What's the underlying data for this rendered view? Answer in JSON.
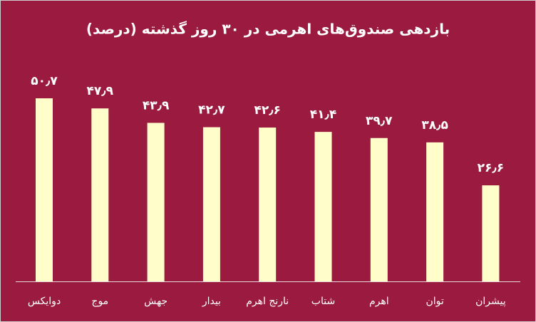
{
  "chart_data": {
    "type": "bar",
    "title": "بازدهی صندوق‌های اهرمی در ۳۰ روز گذشته (درصد)",
    "categories": [
      "دوایکس",
      "موج",
      "جهش",
      "بیدار",
      "نارنج اهرم",
      "شتاب",
      "اهرم",
      "توان",
      "پیشران"
    ],
    "values": [
      50.7,
      47.9,
      43.9,
      42.7,
      42.6,
      41.4,
      39.7,
      38.5,
      26.6
    ],
    "value_labels": [
      "۵۰٫۷",
      "۴۷٫۹",
      "۴۳٫۹",
      "۴۲٫۷",
      "۴۲٫۶",
      "۴۱٫۴",
      "۳۹٫۷",
      "۳۸٫۵",
      "۲۶٫۶"
    ],
    "color": "#fffdc9"
  }
}
